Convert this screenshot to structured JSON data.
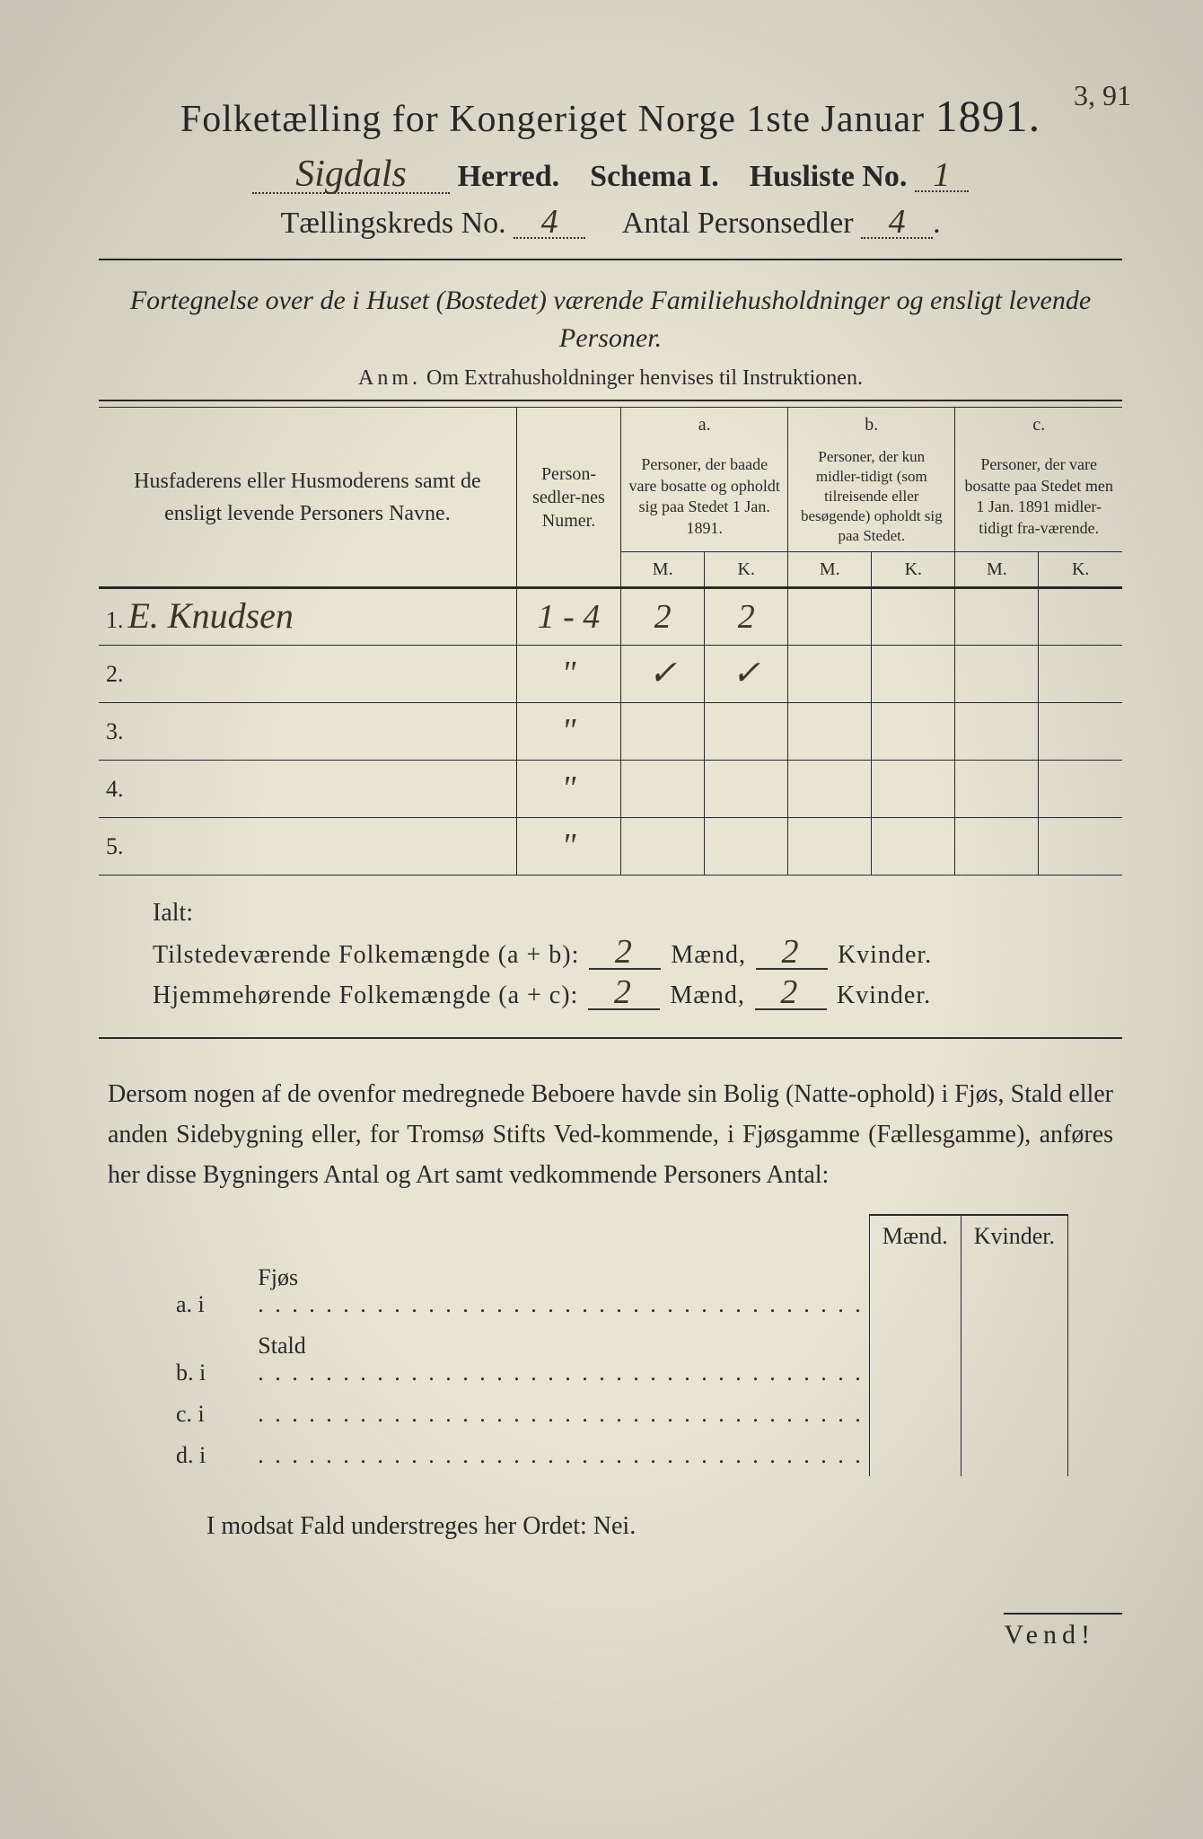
{
  "header": {
    "title_main": "Folketælling for Kongeriget Norge 1ste Januar",
    "title_year": "1891.",
    "herred_value": "Sigdals",
    "herred_label": "Herred.",
    "schema_label": "Schema I.",
    "husliste_label": "Husliste No.",
    "husliste_value": "1",
    "corner_note": "3, 91",
    "kreds_label": "Tællingskreds No.",
    "kreds_value": "4",
    "antal_label": "Antal Personsedler",
    "antal_value": "4"
  },
  "subtitle": "Fortegnelse over de i Huset (Bostedet) værende Familiehusholdninger og ensligt levende Personer.",
  "anm_label": "Anm.",
  "anm_text": "Om Extrahusholdninger henvises til Instruktionen.",
  "table": {
    "col_name": "Husfaderens eller Husmoderens samt de ensligt levende Personers Navne.",
    "col_numer": "Person-sedler-nes Numer.",
    "col_a_label": "a.",
    "col_a": "Personer, der baade vare bosatte og opholdt sig paa Stedet 1 Jan. 1891.",
    "col_b_label": "b.",
    "col_b": "Personer, der kun midler-tidigt (som tilreisende eller besøgende) opholdt sig paa Stedet.",
    "col_c_label": "c.",
    "col_c": "Personer, der vare bosatte paa Stedet men 1 Jan. 1891 midler-tidigt fra-værende.",
    "mk_m": "M.",
    "mk_k": "K.",
    "rows": [
      {
        "no": "1.",
        "name": "E. Knudsen",
        "numer": "1 - 4",
        "a_m": "2",
        "a_k": "2",
        "b_m": "",
        "b_k": "",
        "c_m": "",
        "c_k": ""
      },
      {
        "no": "2.",
        "name": "",
        "numer": "\"",
        "a_m": "✓",
        "a_k": "✓",
        "b_m": "",
        "b_k": "",
        "c_m": "",
        "c_k": ""
      },
      {
        "no": "3.",
        "name": "",
        "numer": "\"",
        "a_m": "",
        "a_k": "",
        "b_m": "",
        "b_k": "",
        "c_m": "",
        "c_k": ""
      },
      {
        "no": "4.",
        "name": "",
        "numer": "\"",
        "a_m": "",
        "a_k": "",
        "b_m": "",
        "b_k": "",
        "c_m": "",
        "c_k": ""
      },
      {
        "no": "5.",
        "name": "",
        "numer": "\"",
        "a_m": "",
        "a_k": "",
        "b_m": "",
        "b_k": "",
        "c_m": "",
        "c_k": ""
      }
    ]
  },
  "totals": {
    "ialt": "Ialt:",
    "present_label": "Tilstedeværende Folkemængde (a + b):",
    "present_m": "2",
    "present_k": "2",
    "home_label": "Hjemmehørende Folkemængde (a + c):",
    "home_m": "2",
    "home_k": "2",
    "maend": "Mænd,",
    "kvinder": "Kvinder."
  },
  "paragraph": "Dersom nogen af de ovenfor medregnede Beboere havde sin Bolig (Natte-ophold) i Fjøs, Stald eller anden Sidebygning eller, for Tromsø Stifts Ved-kommende, i Fjøsgamme (Fællesgamme), anføres her disse Bygningers Antal og Art samt vedkommende Personers Antal:",
  "sb": {
    "maend": "Mænd.",
    "kvinder": "Kvinder.",
    "rows": [
      {
        "label": "a.  i",
        "name": "Fjøs"
      },
      {
        "label": "b.  i",
        "name": "Stald"
      },
      {
        "label": "c.  i",
        "name": ""
      },
      {
        "label": "d.  i",
        "name": ""
      }
    ]
  },
  "nei_line": "I modsat Fald understreges her Ordet: Nei.",
  "vend": "Vend!",
  "style": {
    "paper_bg": "#e8e4d4",
    "ink": "#2a2a2a",
    "handwriting": "#3a3628"
  }
}
